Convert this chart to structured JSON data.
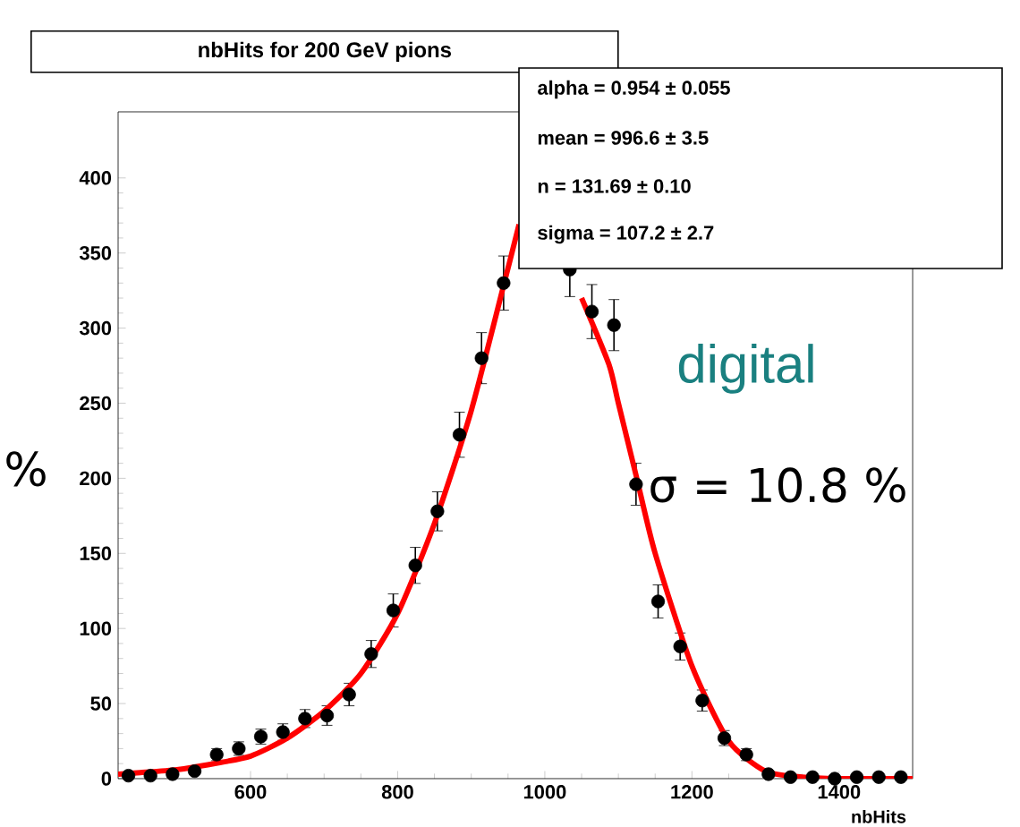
{
  "chart_data": {
    "type": "scatter",
    "title": "nbHits for 200 GeV pions",
    "xlabel": "nbHits",
    "xlim": [
      420,
      1500
    ],
    "ylim": [
      0,
      444
    ],
    "xticks": [
      600,
      800,
      1000,
      1200,
      1400
    ],
    "yticks": [
      0,
      50,
      100,
      150,
      200,
      250,
      300,
      350,
      400
    ],
    "grid": false,
    "annotations": [
      "alpha =  0.954 ± 0.055",
      "mean =  996.6 ± 3.5",
      "n =  131.69 ± 0.10",
      "sigma =  107.2 ± 2.7",
      "digital",
      "σ = 10.8 %",
      "%"
    ],
    "series": [
      {
        "type": "scatter",
        "color": "#000000",
        "marker": "circle",
        "x": [
          434,
          464,
          494,
          524,
          554,
          584,
          614,
          644,
          674,
          704,
          734,
          764,
          794,
          824,
          854,
          884,
          914,
          944,
          974,
          1004,
          1034,
          1064,
          1094,
          1124,
          1154,
          1184,
          1214,
          1244,
          1274,
          1304,
          1334,
          1364,
          1394,
          1424,
          1454,
          1484
        ],
        "values": [
          2,
          2,
          3,
          5,
          16,
          20,
          28,
          31,
          40,
          42,
          56,
          83,
          112,
          142,
          178,
          229,
          280,
          330,
          null,
          null,
          339,
          311,
          302,
          196,
          118,
          88,
          52,
          27,
          16,
          3,
          1,
          1,
          0,
          1,
          1,
          1
        ],
        "errors": [
          1.5,
          1.5,
          2,
          2,
          4,
          4.5,
          5,
          5.5,
          6,
          6.5,
          7.5,
          9,
          11,
          12,
          13,
          15,
          17,
          18,
          null,
          null,
          18,
          18,
          17,
          14,
          11,
          9,
          7,
          5,
          4,
          2,
          1,
          1,
          1,
          1,
          1,
          1
        ]
      },
      {
        "type": "line",
        "color": "#ff0000",
        "line_style": "solid",
        "marker": "none",
        "x": [
          420,
          450,
          500,
          550,
          600,
          650,
          700,
          750,
          800,
          850,
          900,
          950,
          965,
          1000,
          1036,
          1050,
          1087,
          1100,
          1125,
          1150,
          1200,
          1250,
          1300,
          1350,
          1400,
          1500
        ],
        "values": [
          3,
          4,
          6,
          10,
          15,
          27,
          45,
          70,
          110,
          170,
          245,
          340,
          369,
          null,
          null,
          320,
          276,
          250,
          200,
          150,
          75,
          25,
          5,
          1,
          0,
          0
        ]
      }
    ]
  }
}
